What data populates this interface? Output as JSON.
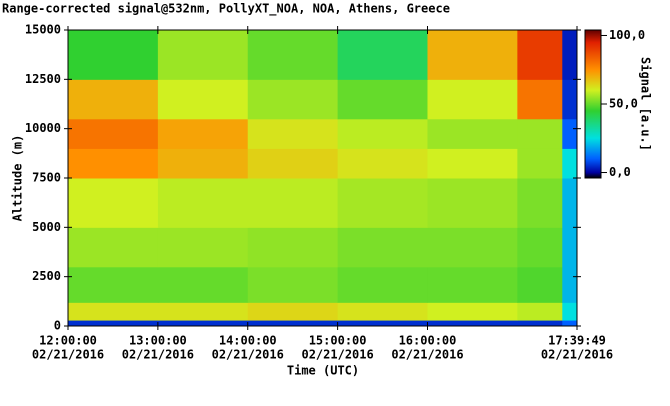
{
  "chart_data": {
    "type": "heatmap",
    "title": "Range-corrected signal@532nm, PollyXT_NOA, NOA, Athens, Greece",
    "x_label": "Time (UTC)",
    "y_label": "Altitude (m)",
    "colorbar_label": "Signal [a.u.]",
    "xlim": [
      12,
      17.6636
    ],
    "xticks": [
      {
        "value": 12,
        "label": "12:00:00",
        "date": "02/21/2016"
      },
      {
        "value": 13,
        "label": "13:00:00",
        "date": "02/21/2016"
      },
      {
        "value": 14,
        "label": "14:00:00",
        "date": "02/21/2016"
      },
      {
        "value": 15,
        "label": "15:00:00",
        "date": "02/21/2016"
      },
      {
        "value": 16,
        "label": "16:00:00",
        "date": "02/21/2016"
      },
      {
        "value": 17.6636,
        "label": "17:39:49",
        "date": "02/21/2016"
      }
    ],
    "ylim": [
      0,
      15000
    ],
    "yticks": [
      0,
      2500,
      5000,
      7500,
      10000,
      12500,
      15000
    ],
    "clim": [
      -4,
      104
    ],
    "cticks": [
      {
        "value": 0,
        "label": "0,0"
      },
      {
        "value": 50,
        "label": "50,0"
      },
      {
        "value": 100,
        "label": "100,0"
      }
    ],
    "colorscale": [
      [
        -4,
        "#000000"
      ],
      [
        0,
        "#0000a0"
      ],
      [
        10,
        "#0060ff"
      ],
      [
        25,
        "#00e0e0"
      ],
      [
        45,
        "#30d030"
      ],
      [
        60,
        "#d0f020"
      ],
      [
        75,
        "#ff9000"
      ],
      [
        95,
        "#e02000"
      ],
      [
        104,
        "#600000"
      ]
    ],
    "x_edges": [
      12,
      13,
      14,
      15,
      16,
      17,
      17.5,
      17.6636
    ],
    "y_edges": [
      0,
      300,
      1200,
      3000,
      5000,
      7500,
      9000,
      10500,
      12500,
      15000
    ],
    "z": [
      [
        5,
        5,
        5,
        5,
        5,
        5,
        10
      ],
      [
        62,
        62,
        64,
        62,
        60,
        58,
        25
      ],
      [
        50,
        50,
        52,
        50,
        50,
        48,
        20
      ],
      [
        55,
        55,
        54,
        52,
        52,
        50,
        20
      ],
      [
        60,
        58,
        58,
        56,
        55,
        52,
        20
      ],
      [
        75,
        70,
        65,
        62,
        60,
        55,
        25
      ],
      [
        80,
        72,
        62,
        58,
        55,
        55,
        10
      ],
      [
        70,
        60,
        55,
        50,
        60,
        80,
        5
      ],
      [
        45,
        55,
        50,
        40,
        70,
        90,
        3
      ]
    ]
  }
}
